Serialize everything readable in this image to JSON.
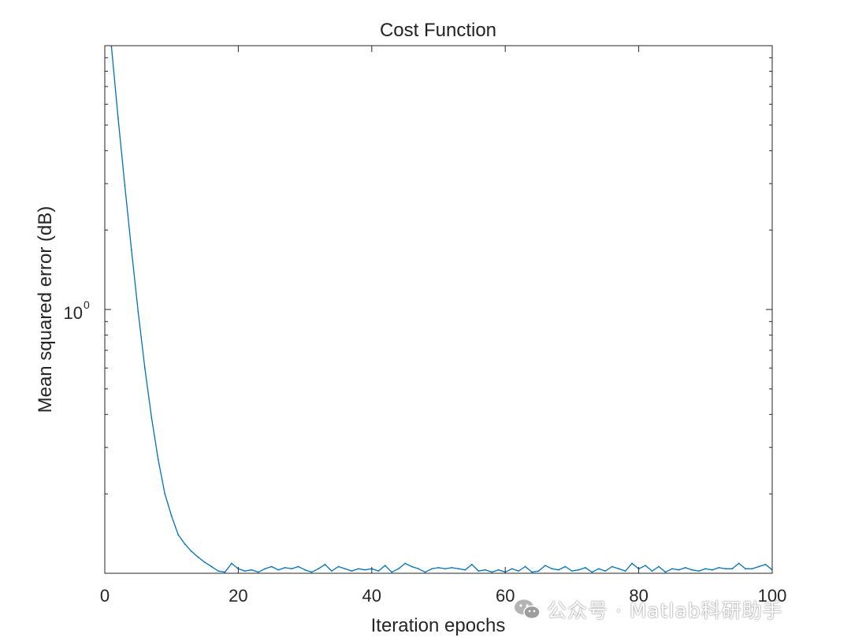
{
  "chart_data": {
    "type": "line",
    "title": "Cost Function",
    "xlabel": "Iteration epochs",
    "ylabel": "Mean squared error (dB)",
    "xlim": [
      0,
      100
    ],
    "ylim": [
      0.1,
      10
    ],
    "yscale": "log",
    "xticks": [
      0,
      20,
      40,
      60,
      80,
      100
    ],
    "xtick_labels": [
      "0",
      "20",
      "40",
      "60",
      "80",
      "100"
    ],
    "yticks": [
      1
    ],
    "ytick_labels": [
      {
        "base": "10",
        "exp": "0"
      }
    ],
    "grid": false,
    "legend": "none",
    "series": [
      {
        "color": "#0072bd",
        "x": [
          1,
          2,
          3,
          4,
          5,
          6,
          7,
          8,
          9,
          10,
          11,
          12,
          13,
          14,
          15,
          16,
          17,
          18,
          19,
          20,
          21,
          22,
          23,
          24,
          25,
          26,
          27,
          28,
          29,
          30,
          31,
          32,
          33,
          34,
          35,
          36,
          37,
          38,
          39,
          40,
          41,
          42,
          43,
          44,
          45,
          46,
          47,
          48,
          49,
          50,
          51,
          52,
          53,
          54,
          55,
          56,
          57,
          58,
          59,
          60,
          61,
          62,
          63,
          64,
          65,
          66,
          67,
          68,
          69,
          70,
          71,
          72,
          73,
          74,
          75,
          76,
          77,
          78,
          79,
          80,
          81,
          82,
          83,
          84,
          85,
          86,
          87,
          88,
          89,
          90,
          91,
          92,
          93,
          94,
          95,
          96,
          97,
          98,
          99,
          100
        ],
        "values": [
          9.9,
          5.3,
          2.95,
          1.68,
          0.98,
          0.6,
          0.39,
          0.27,
          0.2,
          0.165,
          0.14,
          0.129,
          0.121,
          0.115,
          0.11,
          0.106,
          0.102,
          0.101,
          0.109,
          0.104,
          0.102,
          0.103,
          0.101,
          0.104,
          0.106,
          0.103,
          0.105,
          0.104,
          0.106,
          0.103,
          0.101,
          0.104,
          0.108,
          0.102,
          0.106,
          0.104,
          0.102,
          0.104,
          0.103,
          0.104,
          0.102,
          0.107,
          0.101,
          0.104,
          0.109,
          0.106,
          0.104,
          0.101,
          0.104,
          0.105,
          0.104,
          0.105,
          0.104,
          0.103,
          0.108,
          0.102,
          0.103,
          0.101,
          0.103,
          0.101,
          0.104,
          0.102,
          0.106,
          0.101,
          0.102,
          0.107,
          0.104,
          0.103,
          0.106,
          0.102,
          0.103,
          0.105,
          0.101,
          0.104,
          0.102,
          0.106,
          0.104,
          0.102,
          0.109,
          0.104,
          0.107,
          0.102,
          0.106,
          0.101,
          0.104,
          0.103,
          0.105,
          0.103,
          0.102,
          0.104,
          0.103,
          0.105,
          0.104,
          0.104,
          0.109,
          0.104,
          0.104,
          0.106,
          0.108,
          0.103
        ]
      }
    ]
  },
  "watermark": {
    "text": "公众号 · Matlab科研助手",
    "icon": "wechat-icon"
  }
}
